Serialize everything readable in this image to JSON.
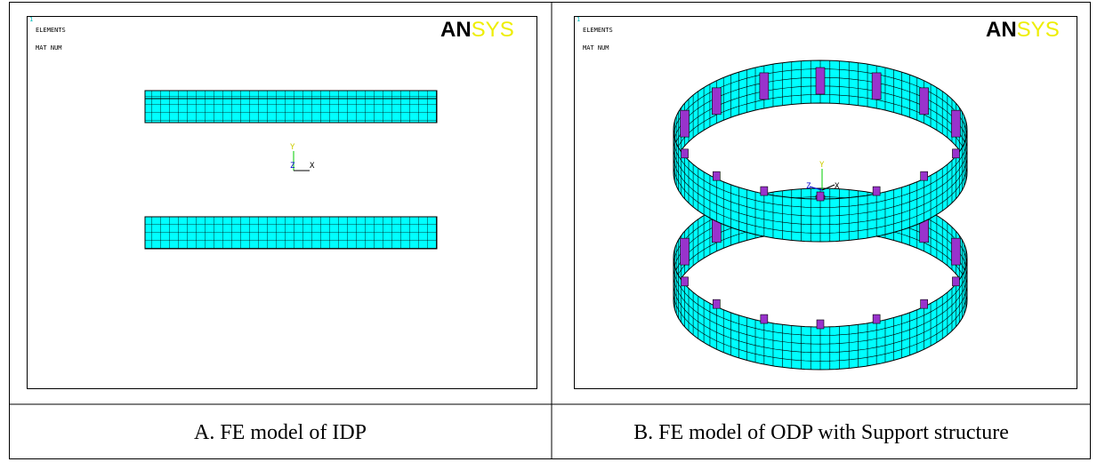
{
  "panels": [
    {
      "image": {
        "index": "1",
        "lines": [
          "ELEMENTS",
          "MAT NUM"
        ],
        "logo": [
          "AN",
          "SYS"
        ],
        "axes": [
          "Y",
          "Z",
          "X"
        ]
      },
      "caption": "A. FE model of IDP"
    },
    {
      "image": {
        "index": "1",
        "lines": [
          "ELEMENTS",
          "MAT NUM"
        ],
        "logo": [
          "AN",
          "SYS"
        ],
        "axes": [
          "Y",
          "Z",
          "X"
        ]
      },
      "caption": "B. FE model of ODP with Support structure"
    }
  ]
}
